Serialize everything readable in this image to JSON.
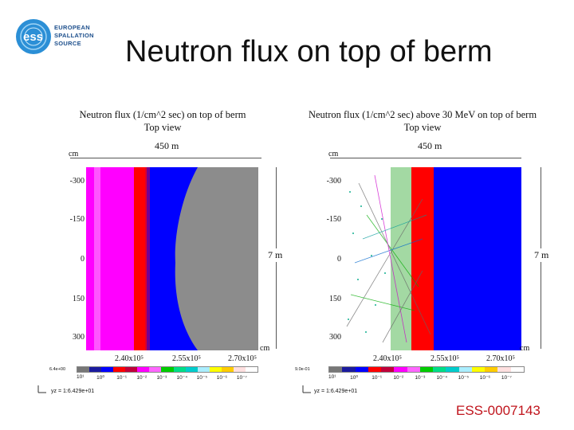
{
  "logo": {
    "emblem": "ess",
    "lines": [
      "EUROPEAN",
      "SPALLATION",
      "SOURCE"
    ]
  },
  "slide": {
    "title": "Neutron flux on top of berm",
    "doc_id": "ESS-0007143"
  },
  "colors": {
    "magenta": "#ff00ff",
    "red": "#ff0000",
    "blue": "#0000ff",
    "gray": "#8c8c8c",
    "green": "#00cc00",
    "title_red": "#c0141c"
  },
  "panels": [
    {
      "title_line1": "Neutron flux (1/cm^2 sec) on top of berm",
      "title_line2": "Top view",
      "width_label": "450 m",
      "unit_top": "cm",
      "unit_right": "cm",
      "height_label": "7 m",
      "y_ticks": [
        "-300",
        "-150",
        "0",
        "150",
        "300"
      ],
      "x_ticks": [
        "2.40x10⁵",
        "2.55x10⁵",
        "2.70x10⁵"
      ],
      "scale_min": "6.4e+00",
      "colorbar_ticks": [
        "10¹",
        "10⁰",
        "10⁻¹",
        "10⁻²",
        "10⁻³",
        "10⁻⁴",
        "10⁻⁵",
        "10⁻⁶",
        "10⁻⁷"
      ],
      "axes_label": "yz = 1:6.429e+01"
    },
    {
      "title_line1": "Neutron flux (1/cm^2 sec) above 30 MeV on top of berm",
      "title_line2": "Top view",
      "width_label": "450 m",
      "unit_top": "cm",
      "unit_right": "cm",
      "height_label": "7 m",
      "y_ticks": [
        "-300",
        "-150",
        "0",
        "150",
        "300"
      ],
      "x_ticks": [
        "2.40x10⁵",
        "2.55x10⁵",
        "2.70x10⁵"
      ],
      "scale_min": "9.0e-01",
      "colorbar_ticks": [
        "10¹",
        "10⁰",
        "10⁻¹",
        "10⁻²",
        "10⁻³",
        "10⁻⁴",
        "10⁻⁵",
        "10⁻⁶",
        "10⁻⁷"
      ],
      "axes_label": "yz = 1:6.429e+01"
    }
  ]
}
